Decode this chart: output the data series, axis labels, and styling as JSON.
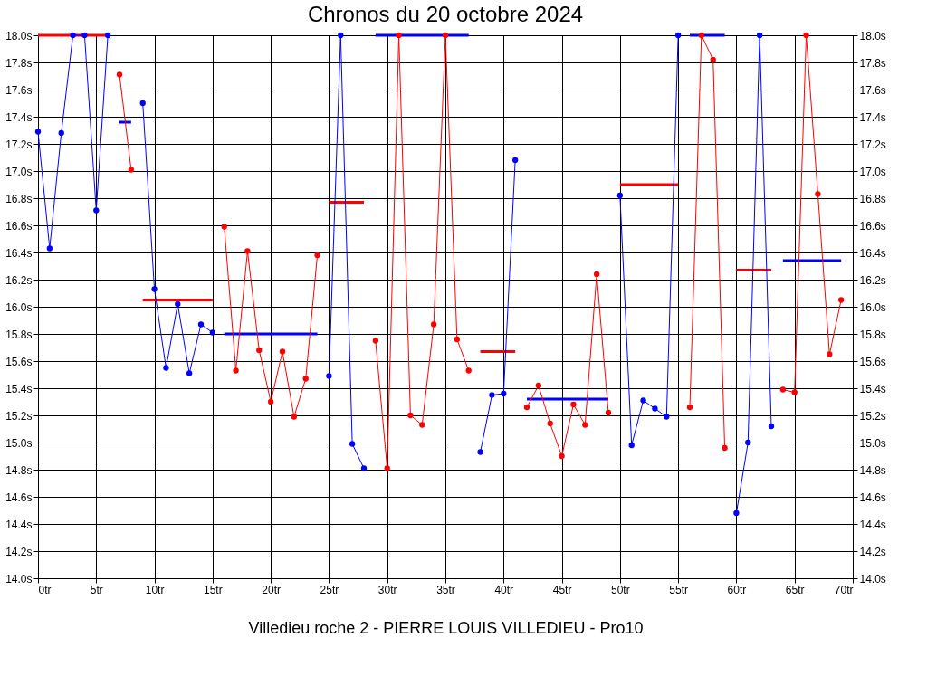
{
  "chart_data": {
    "type": "line",
    "title": "Chronos du 20 octobre 2024",
    "xlabel": "Villedieu roche 2 - PIERRE LOUIS VILLEDIEU - Pro10",
    "xlim": [
      0,
      70
    ],
    "xticks": [
      {
        "value": 0,
        "label": "0tr"
      },
      {
        "value": 5,
        "label": "5tr"
      },
      {
        "value": 10,
        "label": "10tr"
      },
      {
        "value": 15,
        "label": "15tr"
      },
      {
        "value": 20,
        "label": "20tr"
      },
      {
        "value": 25,
        "label": "25tr"
      },
      {
        "value": 30,
        "label": "30tr"
      },
      {
        "value": 35,
        "label": "35tr"
      },
      {
        "value": 40,
        "label": "40tr"
      },
      {
        "value": 45,
        "label": "45tr"
      },
      {
        "value": 50,
        "label": "50tr"
      },
      {
        "value": 55,
        "label": "55tr"
      },
      {
        "value": 60,
        "label": "60tr"
      },
      {
        "value": 65,
        "label": "65tr"
      },
      {
        "value": 70,
        "label": "70tr"
      }
    ],
    "ylim": [
      14.0,
      18.0
    ],
    "yticks": [
      {
        "value": 14.0,
        "label": "14.0s"
      },
      {
        "value": 14.2,
        "label": "14.2s"
      },
      {
        "value": 14.4,
        "label": "14.4s"
      },
      {
        "value": 14.6,
        "label": "14.6s"
      },
      {
        "value": 14.8,
        "label": "14.8s"
      },
      {
        "value": 15.0,
        "label": "15.0s"
      },
      {
        "value": 15.2,
        "label": "15.2s"
      },
      {
        "value": 15.4,
        "label": "15.4s"
      },
      {
        "value": 15.6,
        "label": "15.6s"
      },
      {
        "value": 15.8,
        "label": "15.8s"
      },
      {
        "value": 16.0,
        "label": "16.0s"
      },
      {
        "value": 16.2,
        "label": "16.2s"
      },
      {
        "value": 16.4,
        "label": "16.4s"
      },
      {
        "value": 16.6,
        "label": "16.6s"
      },
      {
        "value": 16.8,
        "label": "16.8s"
      },
      {
        "value": 17.0,
        "label": "17.0s"
      },
      {
        "value": 17.2,
        "label": "17.2s"
      },
      {
        "value": 17.4,
        "label": "17.4s"
      },
      {
        "value": 17.6,
        "label": "17.6s"
      },
      {
        "value": 17.8,
        "label": "17.8s"
      },
      {
        "value": 18.0,
        "label": "18.0s"
      }
    ],
    "y2lim": [
      14.0,
      18.0
    ],
    "y2ticks": [
      {
        "value": 14.0,
        "label": "14.0s"
      },
      {
        "value": 14.2,
        "label": "14.2s"
      },
      {
        "value": 14.4,
        "label": "14.4s"
      },
      {
        "value": 14.6,
        "label": "14.6s"
      },
      {
        "value": 14.8,
        "label": "14.8s"
      },
      {
        "value": 15.0,
        "label": "15.0s"
      },
      {
        "value": 15.2,
        "label": "15.2s"
      },
      {
        "value": 15.4,
        "label": "15.4s"
      },
      {
        "value": 15.6,
        "label": "15.6s"
      },
      {
        "value": 15.8,
        "label": "15.8s"
      },
      {
        "value": 16.0,
        "label": "16.0s"
      },
      {
        "value": 16.2,
        "label": "16.2s"
      },
      {
        "value": 16.4,
        "label": "16.4s"
      },
      {
        "value": 16.6,
        "label": "16.6s"
      },
      {
        "value": 16.8,
        "label": "16.8s"
      },
      {
        "value": 17.0,
        "label": "17.0s"
      },
      {
        "value": 17.2,
        "label": "17.2s"
      },
      {
        "value": 17.4,
        "label": "17.4s"
      },
      {
        "value": 17.6,
        "label": "17.6s"
      },
      {
        "value": 17.8,
        "label": "17.8s"
      },
      {
        "value": 18.0,
        "label": "18.0s"
      }
    ],
    "grid": true,
    "marker": "circle",
    "line_style": "solid",
    "series": [
      {
        "color": "#0000ff",
        "x": [
          0,
          1,
          2,
          3,
          4,
          5,
          6
        ],
        "values": [
          17.29,
          16.43,
          17.28,
          18.0,
          18.0,
          16.71,
          18.0
        ]
      },
      {
        "color": "#ff0000",
        "x": [
          0,
          6
        ],
        "values": [
          18.0,
          18.0
        ],
        "marker": "none"
      },
      {
        "color": "#ff0000",
        "x": [
          7,
          8
        ],
        "values": [
          17.71,
          17.01
        ]
      },
      {
        "color": "#0000ff",
        "x": [
          7,
          8
        ],
        "values": [
          17.36,
          17.36
        ],
        "marker": "none"
      },
      {
        "color": "#0000ff",
        "x": [
          9,
          10,
          11,
          12,
          13,
          14,
          15
        ],
        "values": [
          17.5,
          16.13,
          15.55,
          16.02,
          15.51,
          15.87,
          15.81
        ]
      },
      {
        "color": "#ff0000",
        "x": [
          9,
          15
        ],
        "values": [
          16.05,
          16.05
        ],
        "marker": "none"
      },
      {
        "color": "#ff0000",
        "x": [
          16,
          17,
          18,
          19,
          20,
          21,
          22,
          23,
          24
        ],
        "values": [
          16.59,
          15.53,
          16.41,
          15.68,
          15.3,
          15.67,
          15.19,
          15.47,
          16.38
        ]
      },
      {
        "color": "#0000ff",
        "x": [
          16,
          24
        ],
        "values": [
          15.8,
          15.8
        ],
        "marker": "none"
      },
      {
        "color": "#0000ff",
        "x": [
          25,
          26,
          27,
          28
        ],
        "values": [
          15.49,
          18.0,
          14.99,
          14.81
        ]
      },
      {
        "color": "#ff0000",
        "x": [
          25,
          28
        ],
        "values": [
          16.77,
          16.77
        ],
        "marker": "none"
      },
      {
        "color": "#ff0000",
        "x": [
          29,
          30,
          31,
          32,
          33,
          34,
          35,
          36,
          37
        ],
        "values": [
          15.75,
          14.81,
          18.0,
          15.2,
          15.13,
          15.87,
          18.0,
          15.76,
          15.53
        ]
      },
      {
        "color": "#0000ff",
        "x": [
          29,
          37
        ],
        "values": [
          18.0,
          18.0
        ],
        "marker": "none"
      },
      {
        "color": "#0000ff",
        "x": [
          38,
          39,
          40,
          41
        ],
        "values": [
          14.93,
          15.35,
          15.36,
          17.08
        ]
      },
      {
        "color": "#ff0000",
        "x": [
          38,
          41
        ],
        "values": [
          15.67,
          15.67
        ],
        "marker": "none"
      },
      {
        "color": "#ff0000",
        "x": [
          42,
          43,
          44,
          45,
          46,
          47,
          48,
          49
        ],
        "values": [
          15.26,
          15.42,
          15.14,
          14.9,
          15.28,
          15.13,
          16.24,
          15.22
        ]
      },
      {
        "color": "#0000ff",
        "x": [
          42,
          49
        ],
        "values": [
          15.32,
          15.32
        ],
        "marker": "none"
      },
      {
        "color": "#0000ff",
        "x": [
          50,
          51,
          52,
          53,
          54,
          55
        ],
        "values": [
          16.82,
          14.98,
          15.31,
          15.25,
          15.19,
          18.0
        ]
      },
      {
        "color": "#ff0000",
        "x": [
          50,
          55
        ],
        "values": [
          16.9,
          16.9
        ],
        "marker": "none"
      },
      {
        "color": "#ff0000",
        "x": [
          56,
          57,
          58,
          59
        ],
        "values": [
          15.26,
          18.0,
          17.82,
          14.96
        ]
      },
      {
        "color": "#0000ff",
        "x": [
          56,
          59
        ],
        "values": [
          18.0,
          18.0
        ],
        "marker": "none"
      },
      {
        "color": "#0000ff",
        "x": [
          60,
          61,
          62,
          63
        ],
        "values": [
          14.48,
          15.0,
          18.0,
          15.12
        ]
      },
      {
        "color": "#ff0000",
        "x": [
          60,
          63
        ],
        "values": [
          16.27,
          16.27
        ],
        "marker": "none"
      },
      {
        "color": "#ff0000",
        "x": [
          64,
          65,
          66,
          67,
          68,
          69
        ],
        "values": [
          15.39,
          15.37,
          18.0,
          16.83,
          15.65,
          16.05
        ]
      },
      {
        "color": "#0000ff",
        "x": [
          64,
          69
        ],
        "values": [
          16.34,
          16.34
        ],
        "marker": "none"
      }
    ]
  }
}
